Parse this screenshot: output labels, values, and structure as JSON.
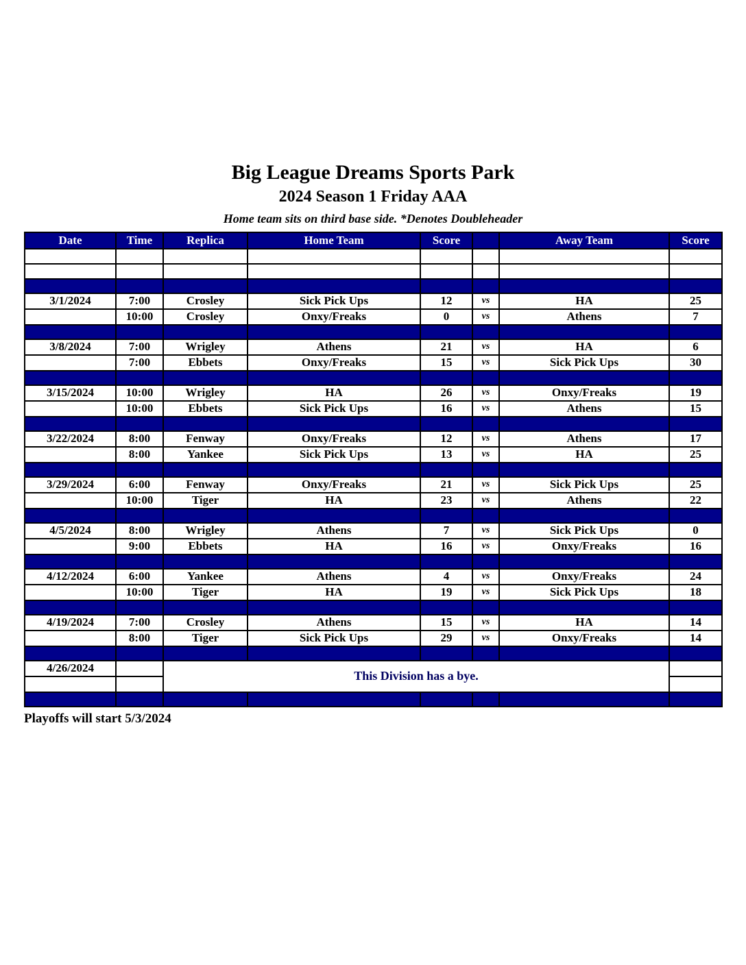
{
  "page": {
    "title": "Big League Dreams Sports Park",
    "subtitle": "2024 Season 1 Friday AAA",
    "note": "Home team sits on third base side.  *Denotes Doubleheader",
    "footer": "Playoffs will start 5/3/2024"
  },
  "colors": {
    "header_bg": "#00008B",
    "header_text": "#FFFFFF",
    "highlight": "#FFFF00",
    "body_text": "#000000"
  },
  "table": {
    "headers": [
      "Date",
      "Time",
      "Replica",
      "Home Team",
      "Score",
      "",
      "Away Team",
      "Score"
    ],
    "vs_label": "vs",
    "groups": [
      {
        "date": "3/1/2024",
        "games": [
          {
            "time": "7:00",
            "replica": "Crosley",
            "home": "Sick Pick Ups",
            "home_score": "12",
            "home_hl": false,
            "away": "HA",
            "away_score": "25",
            "away_hl": true
          },
          {
            "time": "10:00",
            "replica": "Crosley",
            "home": "Onxy/Freaks",
            "home_score": "0",
            "home_hl": false,
            "away": "Athens",
            "away_score": "7",
            "away_hl": true
          }
        ]
      },
      {
        "date": "3/8/2024",
        "games": [
          {
            "time": "7:00",
            "replica": "Wrigley",
            "home": "Athens",
            "home_score": "21",
            "home_hl": true,
            "away": "HA",
            "away_score": "6",
            "away_hl": false
          },
          {
            "time": "7:00",
            "replica": "Ebbets",
            "home": "Onxy/Freaks",
            "home_score": "15",
            "home_hl": false,
            "away": "Sick Pick Ups",
            "away_score": "30",
            "away_hl": true
          }
        ]
      },
      {
        "date": "3/15/2024",
        "games": [
          {
            "time": "10:00",
            "replica": "Wrigley",
            "home": "HA",
            "home_score": "26",
            "home_hl": true,
            "away": "Onxy/Freaks",
            "away_score": "19",
            "away_hl": false
          },
          {
            "time": "10:00",
            "replica": "Ebbets",
            "home": "Sick Pick Ups",
            "home_score": "16",
            "home_hl": true,
            "away": "Athens",
            "away_score": "15",
            "away_hl": false
          }
        ]
      },
      {
        "date": "3/22/2024",
        "games": [
          {
            "time": "8:00",
            "replica": "Fenway",
            "home": "Onxy/Freaks",
            "home_score": "12",
            "home_hl": false,
            "away": "Athens",
            "away_score": "17",
            "away_hl": true
          },
          {
            "time": "8:00",
            "replica": "Yankee",
            "home": "Sick Pick Ups",
            "home_score": "13",
            "home_hl": false,
            "away": "HA",
            "away_score": "25",
            "away_hl": true
          }
        ]
      },
      {
        "date": "3/29/2024",
        "games": [
          {
            "time": "6:00",
            "replica": "Fenway",
            "home": "Onxy/Freaks",
            "home_score": "21",
            "home_hl": false,
            "away": "Sick Pick Ups",
            "away_score": "25",
            "away_hl": true
          },
          {
            "time": "10:00",
            "replica": "Tiger",
            "home": "HA",
            "home_score": "23",
            "home_hl": true,
            "away": "Athens",
            "away_score": "22",
            "away_hl": false
          }
        ]
      },
      {
        "date": "4/5/2024",
        "games": [
          {
            "time": "8:00",
            "replica": "Wrigley",
            "home": "Athens",
            "home_score": "7",
            "home_hl": true,
            "away": "Sick Pick Ups",
            "away_score": "0",
            "away_hl": false
          },
          {
            "time": "9:00",
            "replica": "Ebbets",
            "home": "HA",
            "home_score": "16",
            "home_hl": true,
            "away": "Onxy/Freaks",
            "away_score": "16",
            "away_hl": true
          }
        ]
      },
      {
        "date": "4/12/2024",
        "games": [
          {
            "time": "6:00",
            "replica": "Yankee",
            "home": "Athens",
            "home_score": "4",
            "home_hl": false,
            "away": "Onxy/Freaks",
            "away_score": "24",
            "away_hl": true
          },
          {
            "time": "10:00",
            "replica": "Tiger",
            "home": "HA",
            "home_score": "19",
            "home_hl": true,
            "away": "Sick Pick Ups",
            "away_score": "18",
            "away_hl": false
          }
        ]
      },
      {
        "date": "4/19/2024",
        "games": [
          {
            "time": "7:00",
            "replica": "Crosley",
            "home": "Athens",
            "home_score": "15",
            "home_hl": true,
            "away": "HA",
            "away_score": "14",
            "away_hl": false
          },
          {
            "time": "8:00",
            "replica": "Tiger",
            "home": "Sick Pick Ups",
            "home_score": "29",
            "home_hl": true,
            "away": "Onxy/Freaks",
            "away_score": "14",
            "away_hl": false
          }
        ]
      }
    ],
    "bye": {
      "date": "4/26/2024",
      "text": "This Division has a bye."
    }
  }
}
